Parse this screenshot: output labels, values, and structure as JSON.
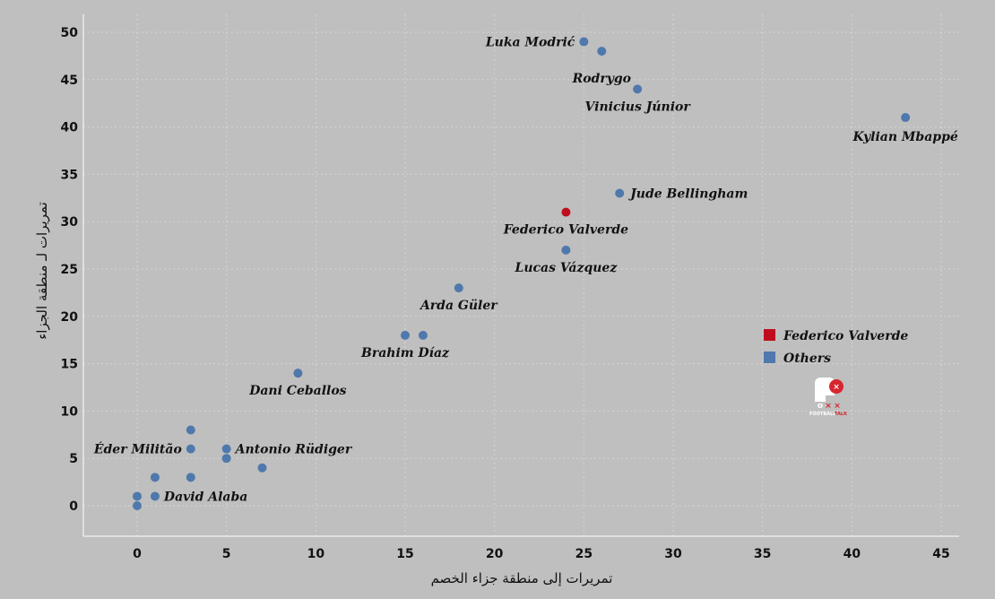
{
  "chart_data": {
    "type": "scatter",
    "title": "",
    "xlabel": "تمريرات إلى منطقة جزاء الخصم",
    "ylabel": "تمريرات لـ منطقة الجزاء",
    "xlim": [
      -3,
      46
    ],
    "ylim": [
      -3,
      52
    ],
    "xticks": [
      0,
      5,
      10,
      15,
      20,
      25,
      30,
      35,
      40,
      45
    ],
    "yticks": [
      0,
      5,
      10,
      15,
      20,
      25,
      30,
      35,
      40,
      45,
      50
    ],
    "grid": true,
    "legend_position": "right",
    "series": [
      {
        "name": "Federico Valverde",
        "color": "#c00d1e",
        "points": [
          {
            "x": 24,
            "y": 31,
            "label": "Federico Valverde"
          }
        ]
      },
      {
        "name": "Others",
        "color": "#4f79ac",
        "points": [
          {
            "x": 25,
            "y": 49,
            "label": "Luka Modrić"
          },
          {
            "x": 26,
            "y": 48,
            "label": "Rodrygo"
          },
          {
            "x": 28,
            "y": 44,
            "label": "Vinicius Júnior"
          },
          {
            "x": 43,
            "y": 41,
            "label": "Kylian Mbappé"
          },
          {
            "x": 27,
            "y": 33,
            "label": "Jude Bellingham"
          },
          {
            "x": 24,
            "y": 27,
            "label": "Lucas Vázquez"
          },
          {
            "x": 18,
            "y": 23,
            "label": "Arda Güler"
          },
          {
            "x": 15,
            "y": 18,
            "label": "Brahim Díaz"
          },
          {
            "x": 16,
            "y": 18,
            "label": ""
          },
          {
            "x": 9,
            "y": 14,
            "label": "Dani Ceballos"
          },
          {
            "x": 3,
            "y": 8,
            "label": ""
          },
          {
            "x": 3,
            "y": 6,
            "label": "Éder Militão"
          },
          {
            "x": 5,
            "y": 6,
            "label": "Antonio Rüdiger"
          },
          {
            "x": 5,
            "y": 5,
            "label": ""
          },
          {
            "x": 7,
            "y": 4,
            "label": ""
          },
          {
            "x": 1,
            "y": 3,
            "label": ""
          },
          {
            "x": 3,
            "y": 3,
            "label": ""
          },
          {
            "x": 0,
            "y": 1,
            "label": ""
          },
          {
            "x": 1,
            "y": 1,
            "label": "David Alaba"
          },
          {
            "x": 0,
            "y": 0,
            "label": ""
          }
        ]
      }
    ]
  },
  "logo": {
    "text_white": "FOOTBALL",
    "text_red": "TALK",
    "icon": "football-talk-logo-icon"
  }
}
